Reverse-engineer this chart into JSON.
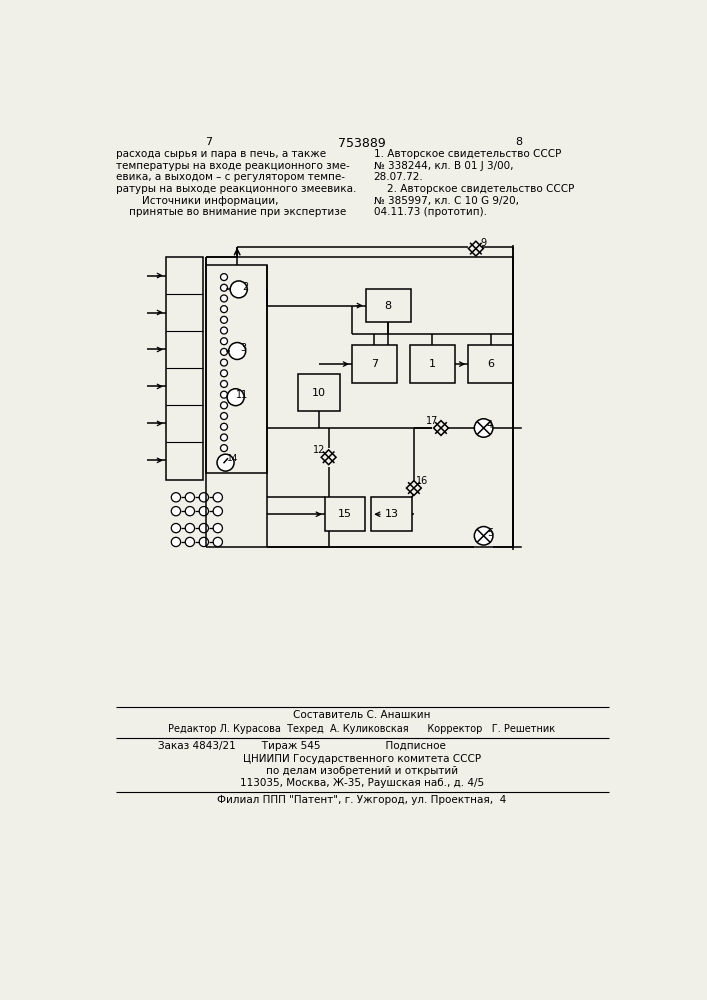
{
  "page_num_left": "7",
  "page_num_center": "753889",
  "page_num_right": "8",
  "left_text": "расхода сырья и пара в печь, а также\nтемпературы на входе реакционного зме-\nевика, а выходом – с регулятором темпе-\nратуры на выходе реакционного змеевика.\n        Источники информации,\n    принятые во внимание при экспертизе",
  "right_text": "1. Авторское свидетельство СССР\n№ 338244, кл. В 01 J 3/00,\n28.07.72.\n    2. Авторское свидетельство СССР\n№ 385997, кл. С 10 G 9/20,\n04.11.73 (прототип).",
  "footer_line1": "Составитель С. Анашкин",
  "footer_line2": "Редактор Л. Курасова  Техред  А. Куликовская      Корректор   Г. Решетник",
  "footer_line3": "Заказ 4843/21        Тираж 545                    Подписное",
  "footer_line4": "ЦНИИПИ Государственного комитета СССР",
  "footer_line5": "по делам изобретений и открытий",
  "footer_line6": "113035, Москва, Ж-35, Раушская наб., д. 4/5",
  "footer_line7": "Филиал ППП \"Патент\", г. Ужгород, ул. Проектная,  4",
  "bg_color": "#f0efe8"
}
